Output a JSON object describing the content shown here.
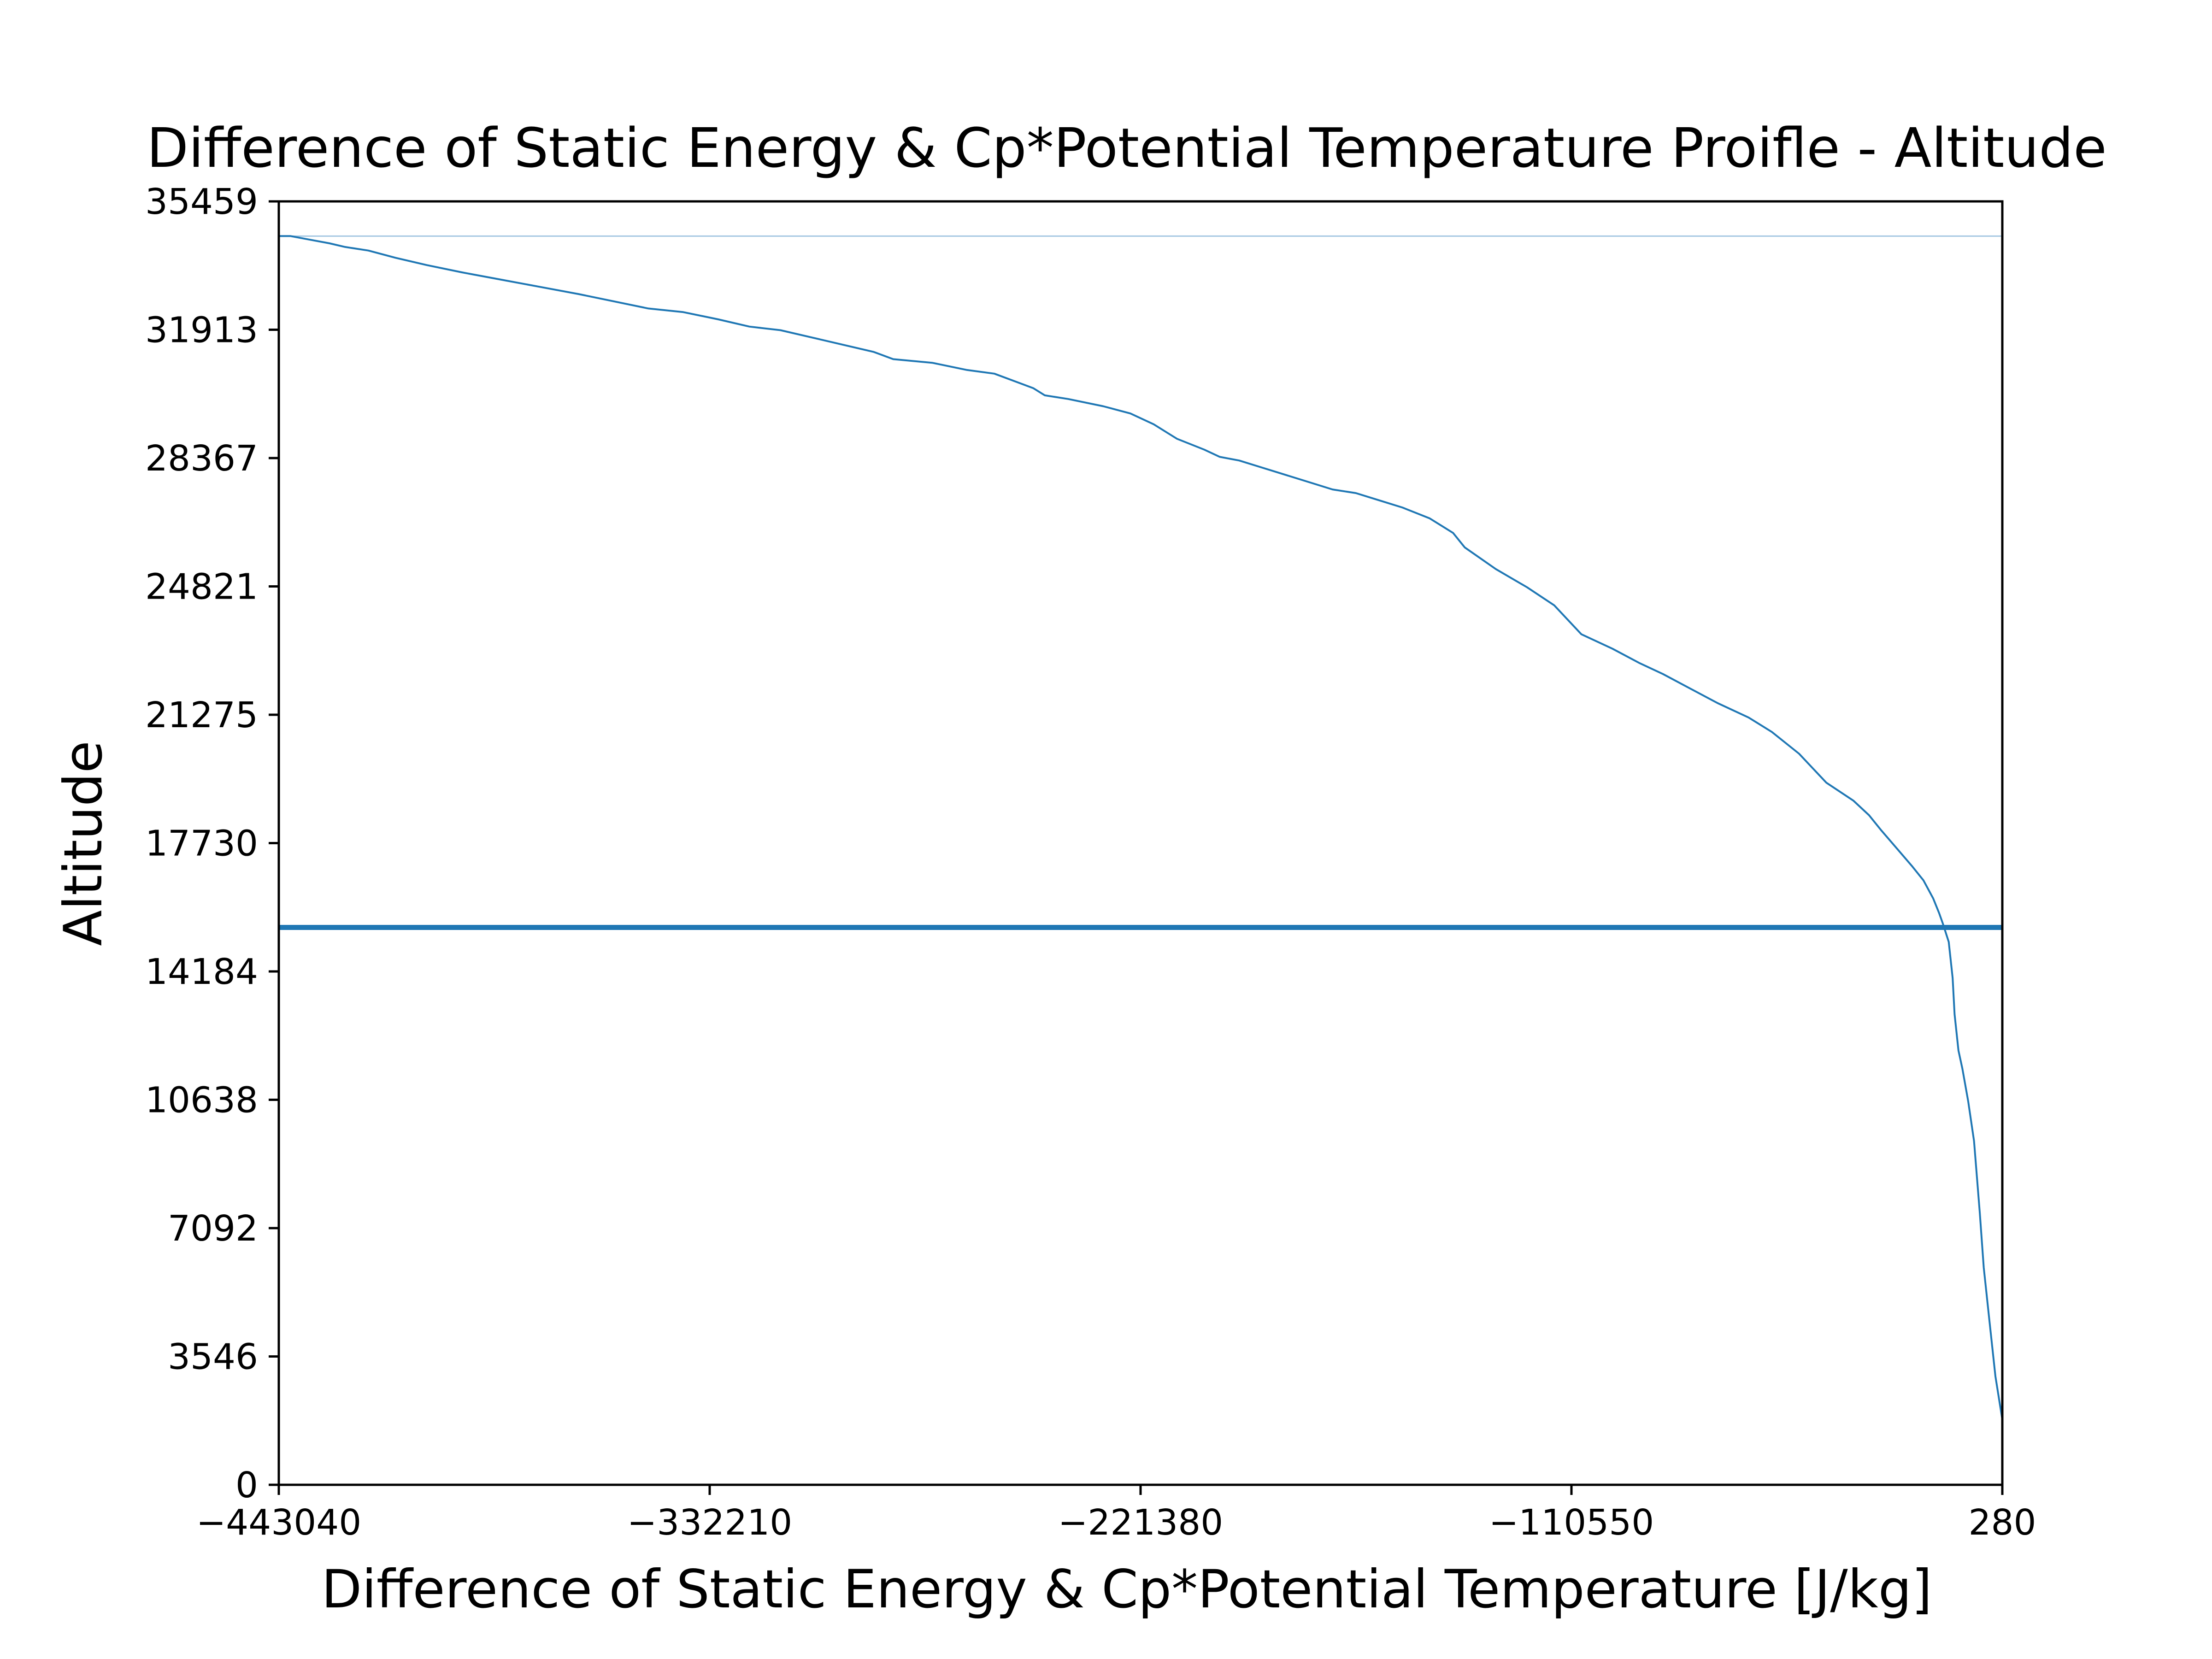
{
  "chart_data": {
    "type": "line",
    "title": "Difference of Static Energy & Cp*Potential Temperature Proifle - Altitude",
    "xlabel": "Difference of Static Energy & Cp*Potential Temperature [J/kg]",
    "ylabel": "Altitude",
    "xlim": [
      -443040,
      280
    ],
    "ylim": [
      0,
      35459
    ],
    "xticks": [
      -443040,
      -332210,
      -221380,
      -110550,
      280
    ],
    "xtick_labels": [
      "−443040",
      "−332210",
      "−221380",
      "−110550",
      "280"
    ],
    "yticks": [
      0,
      3546,
      7092,
      10638,
      14184,
      17730,
      21275,
      24821,
      28367,
      31913,
      35459
    ],
    "ytick_labels": [
      "0",
      "3546",
      "7092",
      "10638",
      "14184",
      "17730",
      "21275",
      "24821",
      "28367",
      "31913",
      "35459"
    ],
    "grid": false,
    "colors": {
      "series": "#1f77b4",
      "tropopause": "#1f77b4",
      "top_level": "#a6c8e2"
    },
    "series": [
      {
        "x": [
          280,
          -1500,
          -3000,
          -4500,
          -5500,
          -7000,
          -8500,
          -10000,
          -11000,
          -12000,
          -12500,
          -13500,
          -15000,
          -16000,
          -17500,
          -20000,
          -23000,
          -27000,
          -31000,
          -34000,
          -38000,
          -45000,
          -52000,
          -59000,
          -65000,
          -73000,
          -80000,
          -87000,
          -93000,
          -100000,
          -108000,
          -115000,
          -122000,
          -130000,
          -138000,
          -141000,
          -147000,
          -154000,
          -160000,
          -166000,
          -172000,
          -178000,
          -184000,
          -190000,
          -196000,
          -201000,
          -205000,
          -212000,
          -218000,
          -224000,
          -231000,
          -240000,
          -246000,
          -249000,
          -254000,
          -259000,
          -266000,
          -275000,
          -285000,
          -290000,
          -298000,
          -306000,
          -314000,
          -322000,
          -330000,
          -339000,
          -348000,
          -357000,
          -366000,
          -376000,
          -386000,
          -396000,
          -405000,
          -413000,
          -420000,
          -426000,
          -430000,
          -435000,
          -440000,
          -443040
        ],
        "y": [
          1800,
          3000,
          4500,
          6000,
          7500,
          9500,
          10600,
          11500,
          12000,
          13000,
          14000,
          15000,
          15500,
          15800,
          16200,
          16700,
          17100,
          17600,
          18100,
          18500,
          18900,
          19400,
          20200,
          20800,
          21200,
          21600,
          22000,
          22400,
          22700,
          23100,
          23500,
          24300,
          24800,
          25300,
          25900,
          26300,
          26700,
          27000,
          27200,
          27400,
          27500,
          27700,
          27900,
          28100,
          28300,
          28400,
          28600,
          28900,
          29300,
          29600,
          29800,
          30000,
          30100,
          30300,
          30500,
          30700,
          30800,
          31000,
          31100,
          31300,
          31500,
          31700,
          31900,
          32000,
          32200,
          32400,
          32500,
          32700,
          32900,
          33100,
          33300,
          33500,
          33700,
          33900,
          34100,
          34200,
          34300,
          34400,
          34500,
          34500
        ]
      }
    ],
    "hlines": [
      {
        "y": 15400,
        "style": "thick"
      },
      {
        "y": 34500,
        "style": "thin"
      }
    ]
  }
}
